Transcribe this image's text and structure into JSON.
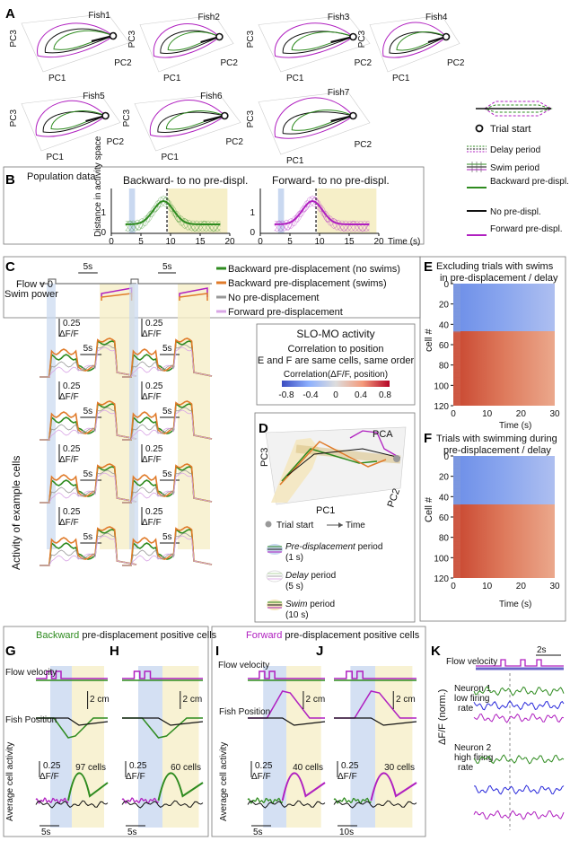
{
  "panel_letters": [
    "A",
    "B",
    "C",
    "D",
    "E",
    "F",
    "G",
    "H",
    "I",
    "J",
    "K"
  ],
  "colors": {
    "backward": "#2e8b1f",
    "backward_swim": "#e07b2a",
    "forward": "#b020c0",
    "none": "#111111",
    "shade_blue": "#c9d8f0",
    "shade_yellow": "#f6efc8"
  },
  "panel_a": {
    "fish_labels": [
      "Fish1",
      "Fish2",
      "Fish3",
      "Fish4",
      "Fish5",
      "Fish6",
      "Fish7"
    ],
    "axis_pc1": "PC1",
    "axis_pc2": "PC2",
    "axis_pc3": "PC3",
    "legend": {
      "trial_start": "Trial start",
      "delay": "Delay period",
      "swim": "Swim period",
      "backward": "Backward pre-displ.",
      "none": "No pre-displ.",
      "forward": "Forward pre-displ."
    }
  },
  "panel_b": {
    "label": "Population data",
    "title_left": "Backward- to no pre-displ.",
    "title_right": "Forward- to no pre-displ.",
    "ylabel": "Distance in activity space",
    "xlabel": "Time (s)",
    "xticks": [
      "0",
      "5",
      "10",
      "15",
      "20"
    ],
    "yticks": [
      "0",
      "1"
    ]
  },
  "panel_c": {
    "scale_time": "5s",
    "flow_label": "Flow v 0",
    "swim_label": "Swim power",
    "legend": [
      "Backward pre-displacement (no swims)",
      "Backward pre-displacement (swims)",
      "No pre-displacement",
      "Forward pre-displacement"
    ],
    "scale_df": "0.25",
    "scale_df_unit": "ΔF/F",
    "ylabel": "Activity of example cells"
  },
  "slo_mo": {
    "title": "SLO-MO activity",
    "line1": "Correlation to position",
    "line2": "E and F are same cells, same order",
    "cbar_label": "Correlation(ΔF/F, position)",
    "cbar_ticks": [
      "-0.8",
      "-0.4",
      "0",
      "0.4",
      "0.8"
    ]
  },
  "panel_d": {
    "label": "PCA",
    "axis_pc1": "PC1",
    "axis_pc2": "PC2",
    "axis_pc3": "PC3",
    "trial_start": "Trial start",
    "time": "Time",
    "pre_title": "Pre-displacement",
    "pre_rest": " period",
    "pre_dur": "(1 s)",
    "delay_title": "Delay",
    "delay_rest": " period",
    "delay_dur": "(5 s)",
    "swim_title": "Swim",
    "swim_rest": " period",
    "swim_dur": "(10 s)"
  },
  "panel_e": {
    "title1": "Excluding trials with swims",
    "title2": "in pre-displacement / delay",
    "ylabel": "cell #",
    "yticks": [
      "0",
      "20",
      "40",
      "60",
      "80",
      "100",
      "120"
    ],
    "xticks": [
      "0",
      "10",
      "20",
      "30"
    ],
    "xlabel": "Time (s)"
  },
  "panel_f": {
    "title1": "Trials with swimming during",
    "title2": "pre-displacement / delay",
    "ylabel": "Cell #",
    "yticks": [
      "0",
      "20",
      "40",
      "60",
      "80",
      "100",
      "120"
    ],
    "xticks": [
      "0",
      "10",
      "20",
      "30"
    ],
    "xlabel": "Time (s)"
  },
  "panel_gh": {
    "header_colored": "Backward",
    "header_rest": " pre-displacement positive cells",
    "flow": "Flow velocity",
    "position": "Fish Position",
    "activity": "Average cell activity",
    "scale_cm": "2 cm",
    "scale_df": "0.25",
    "scale_df_unit": "ΔF/F",
    "count_g": "97 cells",
    "count_h": "60 cells",
    "scale_time": "5s"
  },
  "panel_ij": {
    "header_colored": "Forward",
    "header_rest": " pre-displacement positive cells",
    "flow": "Flow velocity",
    "position": "Fish Position",
    "activity": "Average cell activity",
    "scale_cm": "2 cm",
    "scale_df": "0.25",
    "scale_df_unit": "ΔF/F",
    "count_i": "40 cells",
    "count_j": "30 cells",
    "scale_time_i": "5s",
    "scale_time_j": "10s"
  },
  "panel_k": {
    "flow": "Flow velocity",
    "scale_time": "2s",
    "neuron1": "Neuron 1 low firing rate",
    "neuron2": "Neuron 2 high firing rate",
    "ylabel": "ΔF/F (norm.)"
  }
}
